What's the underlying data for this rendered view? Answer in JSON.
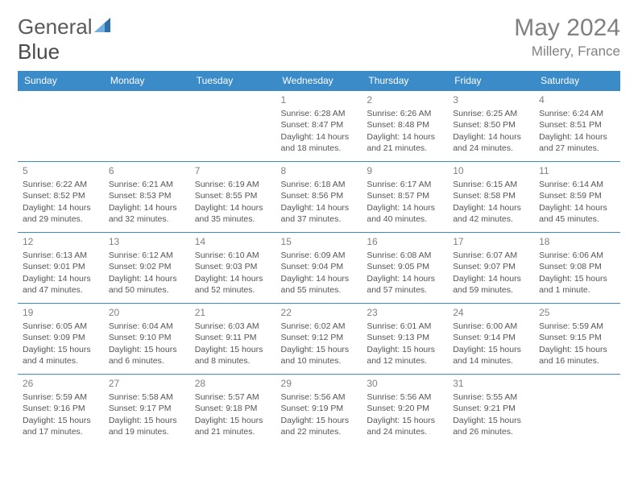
{
  "brand": {
    "part1": "General",
    "part2": "Blue"
  },
  "title": "May 2024",
  "location": "Millery, France",
  "colors": {
    "header_bg": "#3b8bc9",
    "header_fg": "#ffffff",
    "border": "#3b8bc9",
    "text": "#555555",
    "muted": "#808080",
    "page_bg": "#ffffff",
    "logo_accent": "#2f6fa8"
  },
  "weekdays": [
    "Sunday",
    "Monday",
    "Tuesday",
    "Wednesday",
    "Thursday",
    "Friday",
    "Saturday"
  ],
  "weeks": [
    [
      null,
      null,
      null,
      {
        "n": "1",
        "sr": "Sunrise: 6:28 AM",
        "ss": "Sunset: 8:47 PM",
        "dl1": "Daylight: 14 hours",
        "dl2": "and 18 minutes."
      },
      {
        "n": "2",
        "sr": "Sunrise: 6:26 AM",
        "ss": "Sunset: 8:48 PM",
        "dl1": "Daylight: 14 hours",
        "dl2": "and 21 minutes."
      },
      {
        "n": "3",
        "sr": "Sunrise: 6:25 AM",
        "ss": "Sunset: 8:50 PM",
        "dl1": "Daylight: 14 hours",
        "dl2": "and 24 minutes."
      },
      {
        "n": "4",
        "sr": "Sunrise: 6:24 AM",
        "ss": "Sunset: 8:51 PM",
        "dl1": "Daylight: 14 hours",
        "dl2": "and 27 minutes."
      }
    ],
    [
      {
        "n": "5",
        "sr": "Sunrise: 6:22 AM",
        "ss": "Sunset: 8:52 PM",
        "dl1": "Daylight: 14 hours",
        "dl2": "and 29 minutes."
      },
      {
        "n": "6",
        "sr": "Sunrise: 6:21 AM",
        "ss": "Sunset: 8:53 PM",
        "dl1": "Daylight: 14 hours",
        "dl2": "and 32 minutes."
      },
      {
        "n": "7",
        "sr": "Sunrise: 6:19 AM",
        "ss": "Sunset: 8:55 PM",
        "dl1": "Daylight: 14 hours",
        "dl2": "and 35 minutes."
      },
      {
        "n": "8",
        "sr": "Sunrise: 6:18 AM",
        "ss": "Sunset: 8:56 PM",
        "dl1": "Daylight: 14 hours",
        "dl2": "and 37 minutes."
      },
      {
        "n": "9",
        "sr": "Sunrise: 6:17 AM",
        "ss": "Sunset: 8:57 PM",
        "dl1": "Daylight: 14 hours",
        "dl2": "and 40 minutes."
      },
      {
        "n": "10",
        "sr": "Sunrise: 6:15 AM",
        "ss": "Sunset: 8:58 PM",
        "dl1": "Daylight: 14 hours",
        "dl2": "and 42 minutes."
      },
      {
        "n": "11",
        "sr": "Sunrise: 6:14 AM",
        "ss": "Sunset: 8:59 PM",
        "dl1": "Daylight: 14 hours",
        "dl2": "and 45 minutes."
      }
    ],
    [
      {
        "n": "12",
        "sr": "Sunrise: 6:13 AM",
        "ss": "Sunset: 9:01 PM",
        "dl1": "Daylight: 14 hours",
        "dl2": "and 47 minutes."
      },
      {
        "n": "13",
        "sr": "Sunrise: 6:12 AM",
        "ss": "Sunset: 9:02 PM",
        "dl1": "Daylight: 14 hours",
        "dl2": "and 50 minutes."
      },
      {
        "n": "14",
        "sr": "Sunrise: 6:10 AM",
        "ss": "Sunset: 9:03 PM",
        "dl1": "Daylight: 14 hours",
        "dl2": "and 52 minutes."
      },
      {
        "n": "15",
        "sr": "Sunrise: 6:09 AM",
        "ss": "Sunset: 9:04 PM",
        "dl1": "Daylight: 14 hours",
        "dl2": "and 55 minutes."
      },
      {
        "n": "16",
        "sr": "Sunrise: 6:08 AM",
        "ss": "Sunset: 9:05 PM",
        "dl1": "Daylight: 14 hours",
        "dl2": "and 57 minutes."
      },
      {
        "n": "17",
        "sr": "Sunrise: 6:07 AM",
        "ss": "Sunset: 9:07 PM",
        "dl1": "Daylight: 14 hours",
        "dl2": "and 59 minutes."
      },
      {
        "n": "18",
        "sr": "Sunrise: 6:06 AM",
        "ss": "Sunset: 9:08 PM",
        "dl1": "Daylight: 15 hours",
        "dl2": "and 1 minute."
      }
    ],
    [
      {
        "n": "19",
        "sr": "Sunrise: 6:05 AM",
        "ss": "Sunset: 9:09 PM",
        "dl1": "Daylight: 15 hours",
        "dl2": "and 4 minutes."
      },
      {
        "n": "20",
        "sr": "Sunrise: 6:04 AM",
        "ss": "Sunset: 9:10 PM",
        "dl1": "Daylight: 15 hours",
        "dl2": "and 6 minutes."
      },
      {
        "n": "21",
        "sr": "Sunrise: 6:03 AM",
        "ss": "Sunset: 9:11 PM",
        "dl1": "Daylight: 15 hours",
        "dl2": "and 8 minutes."
      },
      {
        "n": "22",
        "sr": "Sunrise: 6:02 AM",
        "ss": "Sunset: 9:12 PM",
        "dl1": "Daylight: 15 hours",
        "dl2": "and 10 minutes."
      },
      {
        "n": "23",
        "sr": "Sunrise: 6:01 AM",
        "ss": "Sunset: 9:13 PM",
        "dl1": "Daylight: 15 hours",
        "dl2": "and 12 minutes."
      },
      {
        "n": "24",
        "sr": "Sunrise: 6:00 AM",
        "ss": "Sunset: 9:14 PM",
        "dl1": "Daylight: 15 hours",
        "dl2": "and 14 minutes."
      },
      {
        "n": "25",
        "sr": "Sunrise: 5:59 AM",
        "ss": "Sunset: 9:15 PM",
        "dl1": "Daylight: 15 hours",
        "dl2": "and 16 minutes."
      }
    ],
    [
      {
        "n": "26",
        "sr": "Sunrise: 5:59 AM",
        "ss": "Sunset: 9:16 PM",
        "dl1": "Daylight: 15 hours",
        "dl2": "and 17 minutes."
      },
      {
        "n": "27",
        "sr": "Sunrise: 5:58 AM",
        "ss": "Sunset: 9:17 PM",
        "dl1": "Daylight: 15 hours",
        "dl2": "and 19 minutes."
      },
      {
        "n": "28",
        "sr": "Sunrise: 5:57 AM",
        "ss": "Sunset: 9:18 PM",
        "dl1": "Daylight: 15 hours",
        "dl2": "and 21 minutes."
      },
      {
        "n": "29",
        "sr": "Sunrise: 5:56 AM",
        "ss": "Sunset: 9:19 PM",
        "dl1": "Daylight: 15 hours",
        "dl2": "and 22 minutes."
      },
      {
        "n": "30",
        "sr": "Sunrise: 5:56 AM",
        "ss": "Sunset: 9:20 PM",
        "dl1": "Daylight: 15 hours",
        "dl2": "and 24 minutes."
      },
      {
        "n": "31",
        "sr": "Sunrise: 5:55 AM",
        "ss": "Sunset: 9:21 PM",
        "dl1": "Daylight: 15 hours",
        "dl2": "and 26 minutes."
      },
      null
    ]
  ]
}
